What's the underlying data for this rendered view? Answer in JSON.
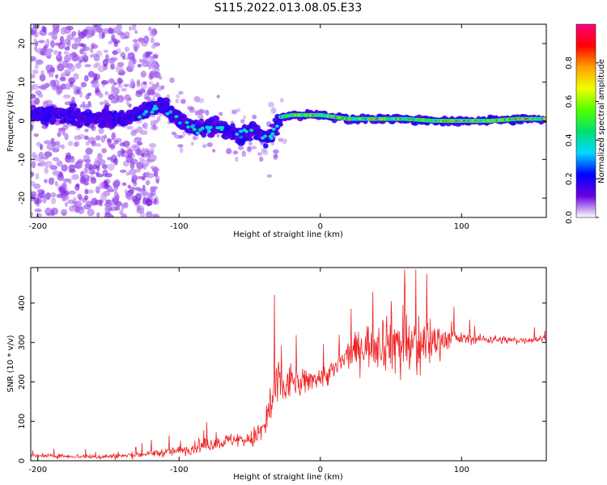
{
  "title": "S115.2022.013.08.05.E33",
  "chart_data": [
    {
      "type": "heatmap",
      "xlabel": "Height of straight line (km)",
      "ylabel": "Frequency (Hz)",
      "xlim": [
        -205,
        160
      ],
      "ylim": [
        -25,
        25
      ],
      "xticks": [
        -200,
        -100,
        0,
        100
      ],
      "yticks": [
        -20,
        -10,
        0,
        10,
        20
      ],
      "grid": false,
      "ridge": {
        "x": [
          -205,
          -190,
          -170,
          -150,
          -135,
          -120,
          -112,
          -105,
          -95,
          -85,
          -75,
          -65,
          -55,
          -45,
          -38,
          -33,
          -28,
          -20,
          -10,
          0,
          20,
          40,
          60,
          80,
          100,
          120,
          140,
          160
        ],
        "freq": [
          1.5,
          2,
          1,
          0.5,
          1,
          3,
          4,
          2,
          -1,
          -2,
          -1.5,
          -2.5,
          -3.5,
          -2.5,
          -5,
          -3,
          1,
          1.5,
          1.5,
          1.5,
          0.5,
          0.5,
          0.5,
          0,
          0,
          0,
          0.5,
          0.5
        ]
      },
      "colorbar": {
        "label": "Normalized spectral amplitude",
        "range": [
          0,
          1
        ],
        "ticks": [
          0.0,
          0.2,
          0.4,
          0.6,
          0.8
        ],
        "tick_labels": [
          "0.0",
          "0.2",
          "0.4",
          "0.6",
          "0.8"
        ],
        "colors": [
          "#ffffff",
          "#6a00e0",
          "#0000ff",
          "#00d8ff",
          "#00e070",
          "#50ff00",
          "#f0ff00",
          "#ffa000",
          "#ff0000",
          "#ff0080"
        ]
      }
    },
    {
      "type": "line",
      "xlabel": "Height of straight line (km)",
      "ylabel": "SNR (10 * v/v)",
      "xlim": [
        -205,
        160
      ],
      "ylim": [
        0,
        490
      ],
      "xticks": [
        -200,
        -100,
        0,
        100
      ],
      "yticks": [
        0,
        100,
        200,
        300,
        400
      ],
      "grid": false,
      "series": [
        {
          "color": "#ee2222",
          "x": [
            -205,
            -180,
            -160,
            -140,
            -120,
            -100,
            -80,
            -60,
            -50,
            -40,
            -35,
            -30,
            -25,
            -20,
            -15,
            -10,
            -5,
            0,
            10,
            20,
            30,
            40,
            50,
            60,
            70,
            80,
            90,
            100,
            120,
            140,
            160
          ],
          "y": [
            12,
            12,
            10,
            12,
            18,
            25,
            40,
            55,
            50,
            80,
            140,
            200,
            180,
            210,
            190,
            200,
            210,
            210,
            230,
            270,
            290,
            300,
            310,
            290,
            290,
            305,
            310,
            310,
            308,
            305,
            310
          ],
          "spread": [
            5,
            6,
            7,
            8,
            10,
            14,
            18,
            20,
            22,
            45,
            80,
            70,
            60,
            45,
            40,
            35,
            30,
            30,
            35,
            40,
            55,
            70,
            90,
            120,
            100,
            60,
            30,
            15,
            12,
            10,
            10
          ]
        }
      ]
    }
  ]
}
